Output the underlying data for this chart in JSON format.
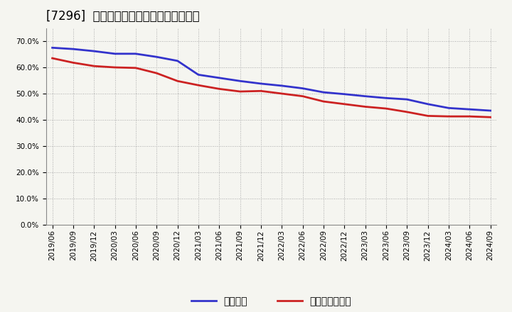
{
  "title": "[7296]  固定比率、固定長期適合率の推移",
  "blue_label": "固定比率",
  "red_label": "固定長期適合率",
  "x_labels": [
    "2019/06",
    "2019/09",
    "2019/12",
    "2020/03",
    "2020/06",
    "2020/09",
    "2020/12",
    "2021/03",
    "2021/06",
    "2021/09",
    "2021/12",
    "2022/03",
    "2022/06",
    "2022/09",
    "2022/12",
    "2023/03",
    "2023/06",
    "2023/09",
    "2023/12",
    "2024/03",
    "2024/06",
    "2024/09"
  ],
  "blue_values": [
    0.675,
    0.67,
    0.662,
    0.652,
    0.652,
    0.64,
    0.625,
    0.572,
    0.56,
    0.548,
    0.538,
    0.53,
    0.52,
    0.505,
    0.498,
    0.49,
    0.483,
    0.478,
    0.46,
    0.445,
    0.44,
    0.435
  ],
  "red_values": [
    0.635,
    0.618,
    0.605,
    0.6,
    0.598,
    0.578,
    0.548,
    0.532,
    0.518,
    0.508,
    0.51,
    0.5,
    0.49,
    0.47,
    0.46,
    0.45,
    0.443,
    0.43,
    0.415,
    0.413,
    0.413,
    0.41
  ],
  "ylim": [
    0.0,
    0.75
  ],
  "yticks": [
    0.0,
    0.1,
    0.2,
    0.3,
    0.4,
    0.5,
    0.6,
    0.7
  ],
  "blue_color": "#3333cc",
  "red_color": "#cc2222",
  "grid_color": "#aaaaaa",
  "bg_color": "#f5f5f0",
  "plot_bg_color": "#f5f5f0",
  "title_fontsize": 12,
  "legend_fontsize": 10,
  "tick_fontsize": 7.5
}
